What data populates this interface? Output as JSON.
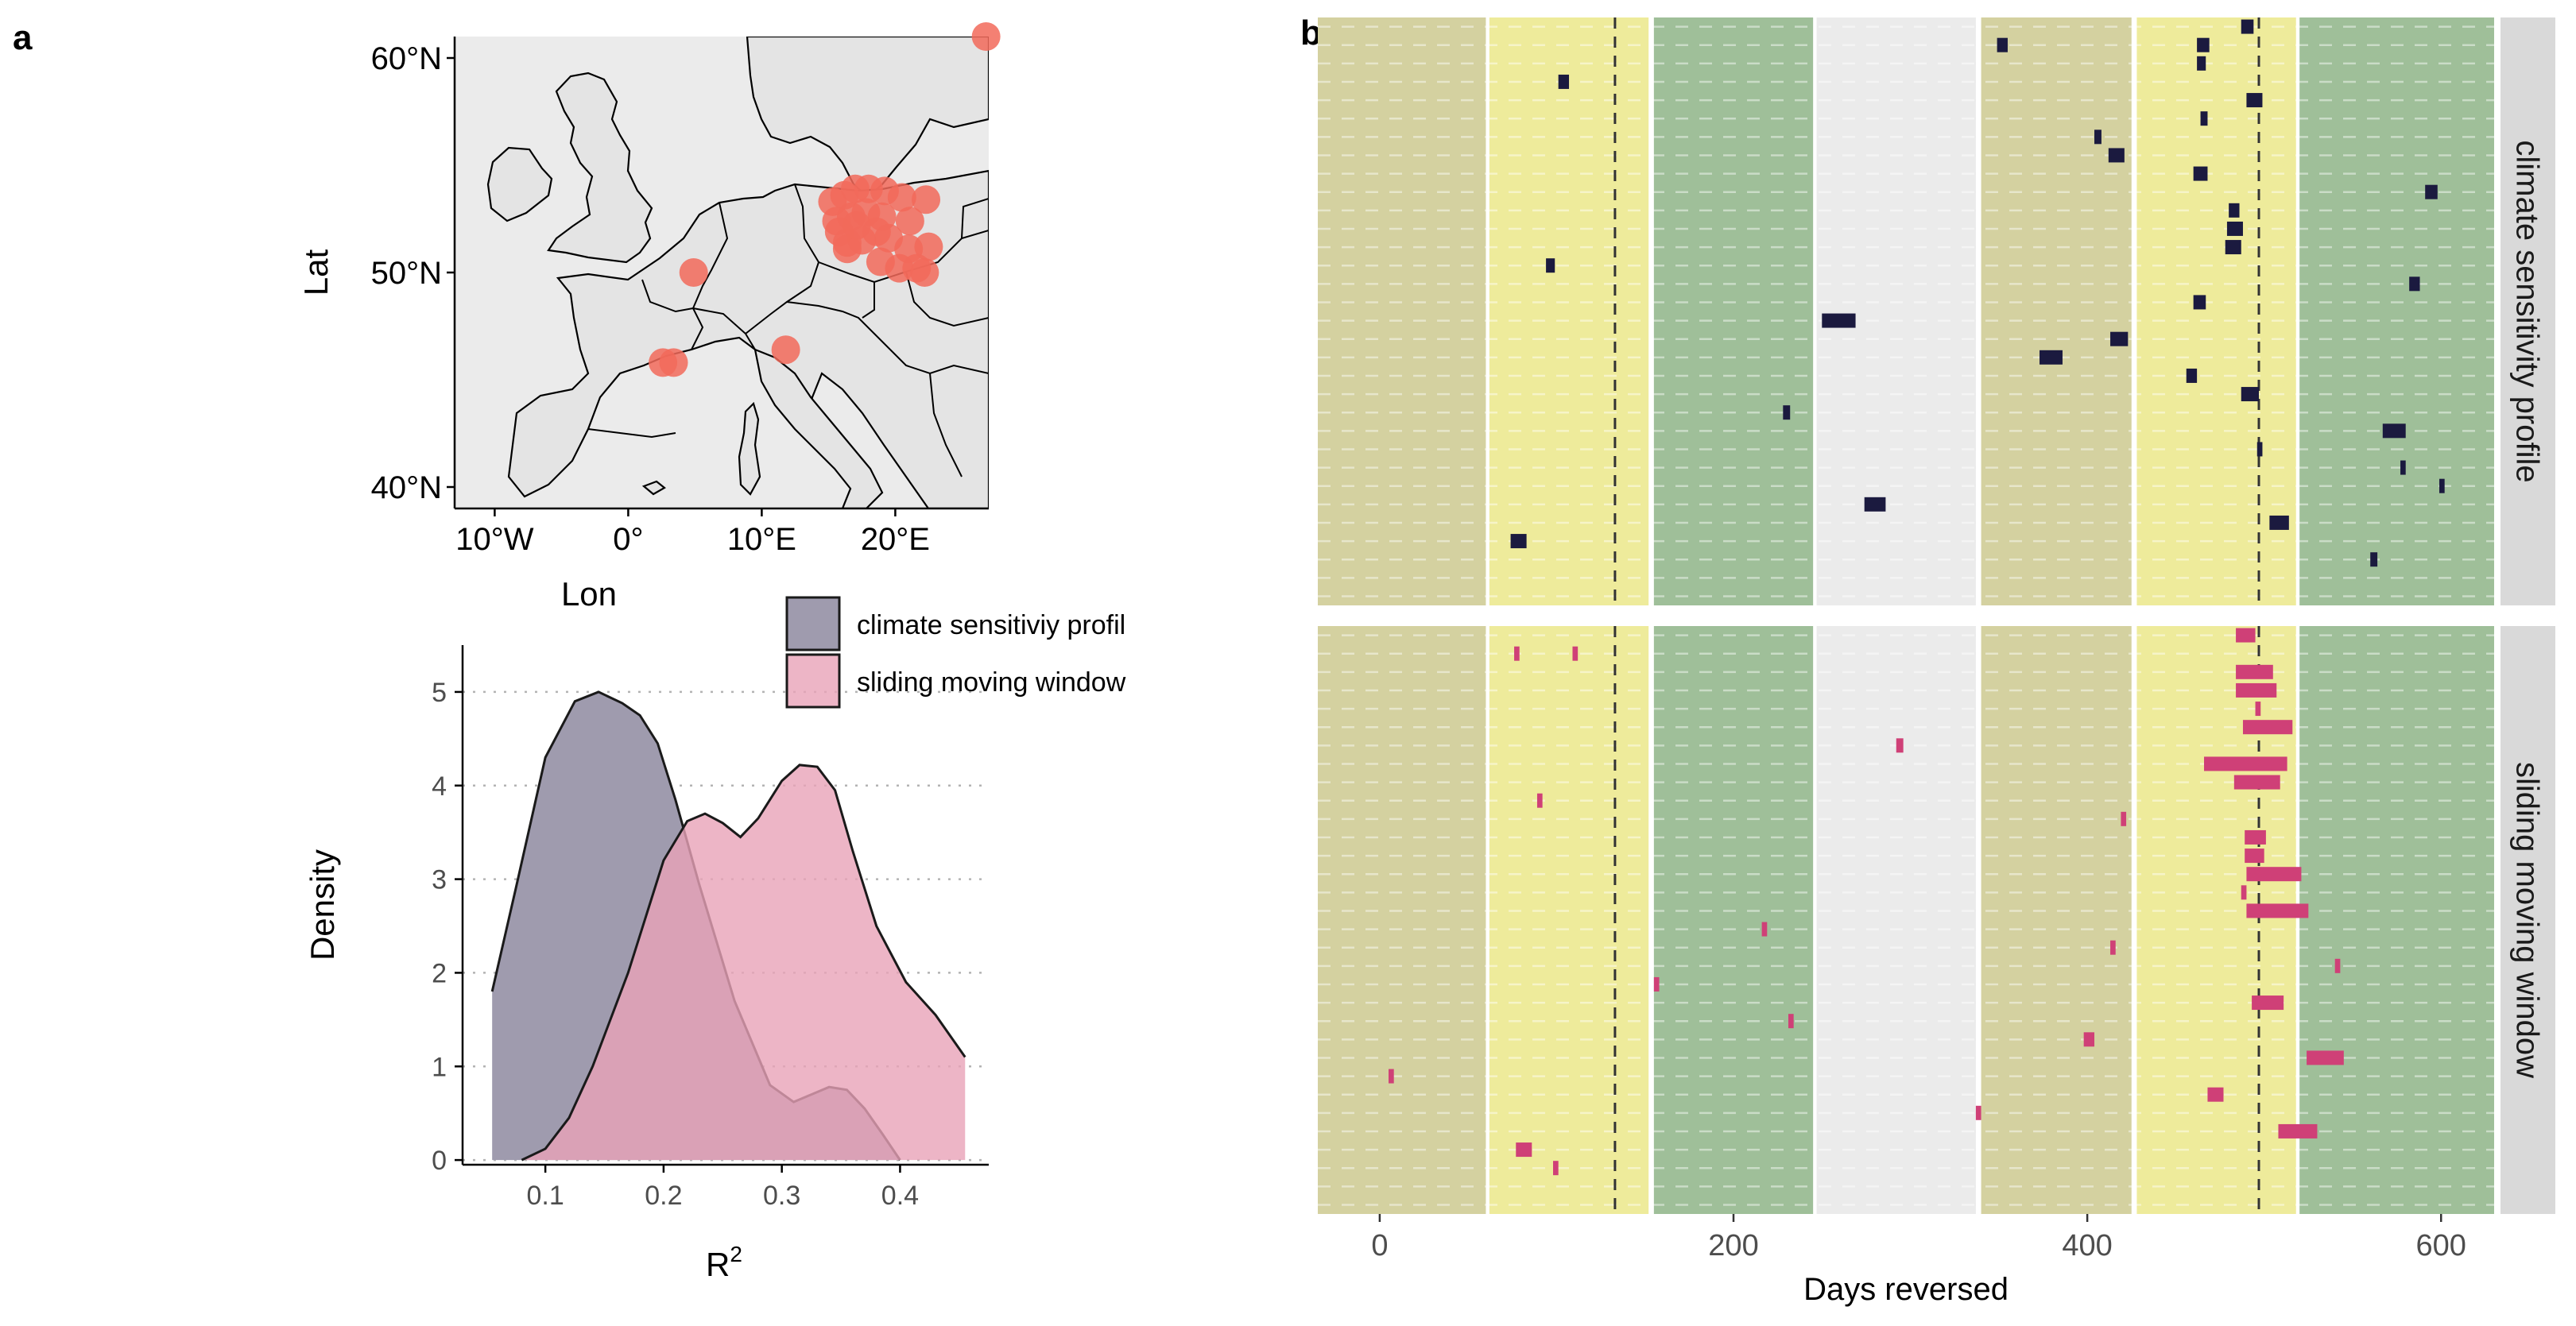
{
  "panel_a_label": "a",
  "panel_b_label": "b",
  "chart_data": [
    {
      "type": "map",
      "xlabel": "Lon",
      "ylabel": "Lat",
      "xlim": [
        -13,
        27
      ],
      "ylim": [
        39,
        61
      ],
      "x_ticks": [
        {
          "value": -10,
          "label": "10°W"
        },
        {
          "value": 0,
          "label": "0°"
        },
        {
          "value": 10,
          "label": "10°E"
        },
        {
          "value": 20,
          "label": "20°E"
        }
      ],
      "y_ticks": [
        {
          "value": 40,
          "label": "40°N"
        },
        {
          "value": 50,
          "label": "50°N"
        },
        {
          "value": 60,
          "label": "60°N"
        }
      ],
      "point_color": "#f26a5a",
      "points": [
        {
          "lon": 2.6,
          "lat": 45.8
        },
        {
          "lon": 3.4,
          "lat": 45.8
        },
        {
          "lon": 4.9,
          "lat": 50.0
        },
        {
          "lon": 11.8,
          "lat": 46.4
        },
        {
          "lon": 26.8,
          "lat": 61.0
        },
        {
          "lon": 15.3,
          "lat": 53.3
        },
        {
          "lon": 16.2,
          "lat": 53.6
        },
        {
          "lon": 17.0,
          "lat": 53.9
        },
        {
          "lon": 18.0,
          "lat": 53.9
        },
        {
          "lon": 19.2,
          "lat": 53.8
        },
        {
          "lon": 20.5,
          "lat": 53.5
        },
        {
          "lon": 22.3,
          "lat": 53.4
        },
        {
          "lon": 15.6,
          "lat": 52.4
        },
        {
          "lon": 16.7,
          "lat": 52.6
        },
        {
          "lon": 17.8,
          "lat": 52.8
        },
        {
          "lon": 19.0,
          "lat": 52.6
        },
        {
          "lon": 21.1,
          "lat": 52.4
        },
        {
          "lon": 16.4,
          "lat": 51.4
        },
        {
          "lon": 17.5,
          "lat": 51.5
        },
        {
          "lon": 19.5,
          "lat": 51.6
        },
        {
          "lon": 21.0,
          "lat": 51.1
        },
        {
          "lon": 22.5,
          "lat": 51.2
        },
        {
          "lon": 16.4,
          "lat": 51.1
        },
        {
          "lon": 18.9,
          "lat": 50.5
        },
        {
          "lon": 20.3,
          "lat": 50.2
        },
        {
          "lon": 21.6,
          "lat": 50.2
        },
        {
          "lon": 22.2,
          "lat": 50.0
        },
        {
          "lon": 17.1,
          "lat": 52.2
        },
        {
          "lon": 18.6,
          "lat": 51.9
        },
        {
          "lon": 15.8,
          "lat": 51.9
        }
      ]
    },
    {
      "type": "area",
      "xlabel": "R",
      "xlabel_superscript": "2",
      "ylabel": "Density",
      "xlim": [
        0.03,
        0.475
      ],
      "ylim": [
        -0.05,
        5.5
      ],
      "x_ticks": [
        0.1,
        0.2,
        0.3,
        0.4
      ],
      "y_ticks": [
        0,
        1,
        2,
        3,
        4,
        5
      ],
      "legend_position": "top-right",
      "series": [
        {
          "name": "climate sensitiviy profil",
          "color": "#9f9bae",
          "x": [
            0.055,
            0.075,
            0.1,
            0.125,
            0.145,
            0.165,
            0.18,
            0.195,
            0.21,
            0.23,
            0.26,
            0.29,
            0.31,
            0.325,
            0.34,
            0.355,
            0.37,
            0.385,
            0.4
          ],
          "y": [
            1.8,
            2.9,
            4.3,
            4.9,
            5.0,
            4.88,
            4.75,
            4.45,
            3.85,
            2.95,
            1.7,
            0.8,
            0.62,
            0.7,
            0.78,
            0.75,
            0.55,
            0.28,
            0.0
          ]
        },
        {
          "name": "sliding moving window",
          "color": "#e9a3b8",
          "x": [
            0.08,
            0.1,
            0.12,
            0.14,
            0.17,
            0.2,
            0.22,
            0.235,
            0.25,
            0.265,
            0.28,
            0.3,
            0.315,
            0.33,
            0.345,
            0.36,
            0.38,
            0.405,
            0.43,
            0.455
          ],
          "y": [
            0.0,
            0.12,
            0.45,
            1.0,
            2.0,
            3.2,
            3.62,
            3.7,
            3.6,
            3.45,
            3.65,
            4.05,
            4.22,
            4.2,
            3.95,
            3.3,
            2.5,
            1.9,
            1.55,
            1.1
          ]
        }
      ]
    },
    {
      "type": "gantt",
      "xlabel": "Days reversed",
      "xlim": [
        -35,
        630
      ],
      "x_ticks": [
        0,
        200,
        400,
        600
      ],
      "vlines": [
        133,
        497
      ],
      "background_bands": [
        {
          "start": -35,
          "end": 60,
          "color": "#d4d1a0"
        },
        {
          "start": 62,
          "end": 152,
          "color": "#eeeb9b"
        },
        {
          "start": 155,
          "end": 245,
          "color": "#9fbf99"
        },
        {
          "start": 247,
          "end": 337,
          "color": "#ebebeb"
        },
        {
          "start": 340,
          "end": 425,
          "color": "#d4d1a0"
        },
        {
          "start": 428,
          "end": 518,
          "color": "#eeeb9b"
        },
        {
          "start": 520,
          "end": 630,
          "color": "#9fbf99"
        }
      ],
      "facets": [
        {
          "name": "climate sensitivity profile",
          "color": "#1b1a3f",
          "rows": 32,
          "bars": [
            [
              0,
              487,
              7
            ],
            [
              1,
              462,
              7
            ],
            [
              1,
              349,
              6
            ],
            [
              2,
              462,
              5
            ],
            [
              3,
              101,
              6
            ],
            [
              4,
              490,
              9
            ],
            [
              5,
              464,
              4
            ],
            [
              6,
              404,
              4
            ],
            [
              7,
              412,
              9
            ],
            [
              8,
              460,
              8
            ],
            [
              9,
              591,
              7
            ],
            [
              10,
              480,
              6
            ],
            [
              11,
              479,
              9
            ],
            [
              12,
              478,
              9
            ],
            [
              13,
              94,
              5
            ],
            [
              14,
              582,
              6
            ],
            [
              15,
              460,
              7
            ],
            [
              16,
              250,
              19
            ],
            [
              17,
              413,
              10
            ],
            [
              18,
              373,
              13
            ],
            [
              19,
              456,
              6
            ],
            [
              20,
              487,
              10
            ],
            [
              21,
              228,
              4
            ],
            [
              22,
              567,
              13
            ],
            [
              23,
              496,
              3
            ],
            [
              24,
              577,
              3
            ],
            [
              25,
              599,
              3
            ],
            [
              26,
              274,
              12
            ],
            [
              27,
              503,
              11
            ],
            [
              28,
              74,
              9
            ],
            [
              29,
              560,
              4
            ]
          ]
        },
        {
          "name": "sliding moving window",
          "color": "#cf4077",
          "rows": 32,
          "bars": [
            [
              0,
              484,
              11
            ],
            [
              1,
              109,
              3
            ],
            [
              1,
              76,
              3
            ],
            [
              2,
              484,
              21
            ],
            [
              3,
              484,
              23
            ],
            [
              4,
              495,
              3
            ],
            [
              5,
              488,
              28
            ],
            [
              6,
              292,
              4
            ],
            [
              7,
              466,
              47
            ],
            [
              8,
              483,
              26
            ],
            [
              9,
              89,
              3
            ],
            [
              10,
              419,
              3
            ],
            [
              11,
              489,
              12
            ],
            [
              12,
              489,
              11
            ],
            [
              13,
              490,
              31
            ],
            [
              14,
              487,
              3
            ],
            [
              15,
              490,
              35
            ],
            [
              16,
              216,
              3
            ],
            [
              17,
              413,
              3
            ],
            [
              18,
              540,
              3
            ],
            [
              19,
              155,
              3
            ],
            [
              20,
              493,
              18
            ],
            [
              21,
              231,
              3
            ],
            [
              22,
              398,
              6
            ],
            [
              23,
              524,
              21
            ],
            [
              24,
              5,
              3
            ],
            [
              25,
              468,
              9
            ],
            [
              26,
              337,
              3
            ],
            [
              27,
              508,
              22
            ],
            [
              28,
              77,
              9
            ],
            [
              29,
              98,
              3
            ]
          ]
        }
      ]
    }
  ]
}
